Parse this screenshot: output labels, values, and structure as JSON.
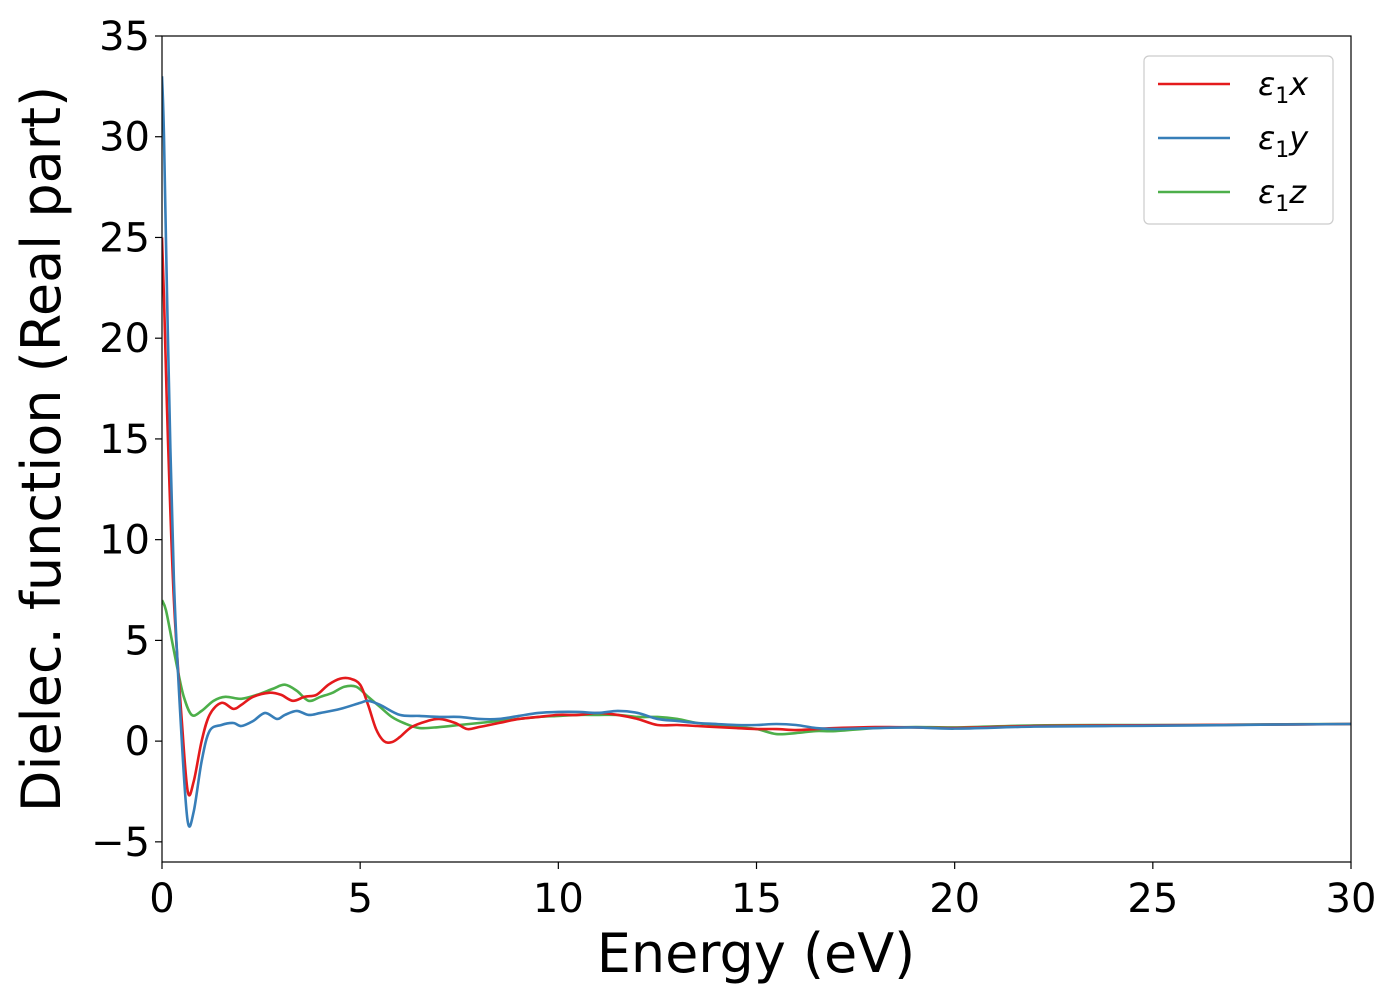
{
  "chart_data": {
    "type": "line",
    "xlabel": "Energy (eV)",
    "ylabel": "Dielec. function (Real part)",
    "xlim": [
      0,
      30
    ],
    "ylim": [
      -6,
      35
    ],
    "xticks": [
      0,
      5,
      10,
      15,
      20,
      25,
      30
    ],
    "yticks": [
      -5,
      0,
      5,
      10,
      15,
      20,
      25,
      30,
      35
    ],
    "xtick_labels": [
      "0",
      "5",
      "10",
      "15",
      "20",
      "25",
      "30"
    ],
    "ytick_labels": [
      "−5",
      "0",
      "5",
      "10",
      "15",
      "20",
      "25",
      "30",
      "35"
    ],
    "grid": false,
    "legend_position": "top-right",
    "series": [
      {
        "name": "ε1x",
        "legend_base": "ε",
        "legend_sub": "1",
        "legend_var": "x",
        "color": "#e41a1c",
        "x": [
          0,
          0.05,
          0.15,
          0.3,
          0.5,
          0.65,
          0.8,
          1.0,
          1.2,
          1.5,
          1.8,
          2.0,
          2.3,
          2.7,
          3.0,
          3.3,
          3.6,
          3.9,
          4.2,
          4.5,
          4.75,
          5.0,
          5.2,
          5.4,
          5.6,
          5.8,
          6.0,
          6.3,
          6.7,
          7.0,
          7.4,
          7.7,
          8.0,
          8.5,
          9.0,
          9.5,
          10.0,
          10.5,
          11.0,
          11.5,
          12.0,
          12.5,
          13.0,
          13.5,
          14.0,
          14.5,
          15.0,
          15.5,
          16.0,
          16.5,
          17.0,
          18.0,
          19.0,
          20.0,
          22.0,
          24.0,
          26.0,
          28.0,
          30.0
        ],
        "y": [
          25,
          22,
          15,
          7,
          1.0,
          -2.5,
          -2.0,
          0,
          1.3,
          1.9,
          1.6,
          1.8,
          2.2,
          2.4,
          2.3,
          2.0,
          2.2,
          2.3,
          2.8,
          3.1,
          3.1,
          2.8,
          1.8,
          0.6,
          0.0,
          -0.05,
          0.2,
          0.7,
          1.0,
          1.1,
          0.9,
          0.6,
          0.7,
          0.9,
          1.1,
          1.2,
          1.3,
          1.3,
          1.4,
          1.3,
          1.1,
          0.8,
          0.8,
          0.75,
          0.7,
          0.65,
          0.6,
          0.6,
          0.55,
          0.6,
          0.65,
          0.7,
          0.68,
          0.65,
          0.75,
          0.78,
          0.8,
          0.82,
          0.85
        ]
      },
      {
        "name": "ε1y",
        "legend_base": "ε",
        "legend_sub": "1",
        "legend_var": "y",
        "color": "#377eb8",
        "x": [
          0,
          0.05,
          0.15,
          0.3,
          0.5,
          0.65,
          0.8,
          1.0,
          1.2,
          1.5,
          1.8,
          2.0,
          2.3,
          2.6,
          2.9,
          3.1,
          3.4,
          3.7,
          4.0,
          4.5,
          5.0,
          5.2,
          5.5,
          6.0,
          6.5,
          7.0,
          7.5,
          8.0,
          8.5,
          9.0,
          9.5,
          10.0,
          10.5,
          11.0,
          11.5,
          12.0,
          12.5,
          13.0,
          13.5,
          14.0,
          14.5,
          15.0,
          15.5,
          16.0,
          16.5,
          17.0,
          18.0,
          19.0,
          20.0,
          22.0,
          24.0,
          26.0,
          28.0,
          30.0
        ],
        "y": [
          33,
          30,
          20,
          8,
          0,
          -4.0,
          -3.5,
          -1.0,
          0.5,
          0.8,
          0.9,
          0.75,
          1.0,
          1.4,
          1.1,
          1.3,
          1.5,
          1.3,
          1.4,
          1.6,
          1.9,
          2.0,
          1.8,
          1.3,
          1.25,
          1.2,
          1.2,
          1.1,
          1.1,
          1.25,
          1.4,
          1.45,
          1.45,
          1.4,
          1.5,
          1.4,
          1.1,
          1.0,
          0.9,
          0.85,
          0.8,
          0.8,
          0.85,
          0.8,
          0.65,
          0.6,
          0.65,
          0.68,
          0.62,
          0.72,
          0.75,
          0.78,
          0.82,
          0.85
        ]
      },
      {
        "name": "ε1z",
        "legend_base": "ε",
        "legend_sub": "1",
        "legend_var": "z",
        "color": "#4daf4a",
        "x": [
          0,
          0.1,
          0.25,
          0.4,
          0.55,
          0.75,
          1.0,
          1.3,
          1.6,
          2.0,
          2.4,
          2.8,
          3.1,
          3.4,
          3.7,
          4.0,
          4.3,
          4.6,
          4.9,
          5.2,
          5.5,
          5.8,
          6.1,
          6.5,
          7.0,
          7.5,
          8.0,
          8.5,
          9.0,
          9.5,
          10.0,
          10.5,
          11.0,
          11.5,
          12.0,
          12.5,
          13.0,
          13.5,
          14.0,
          14.5,
          15.0,
          15.5,
          16.0,
          16.5,
          17.0,
          18.0,
          19.0,
          20.0,
          22.0,
          24.0,
          26.0,
          28.0,
          30.0
        ],
        "y": [
          7.0,
          6.5,
          5.0,
          3.5,
          2.2,
          1.3,
          1.5,
          2.0,
          2.2,
          2.1,
          2.3,
          2.6,
          2.8,
          2.5,
          2.0,
          2.2,
          2.4,
          2.7,
          2.7,
          2.2,
          1.7,
          1.2,
          0.9,
          0.65,
          0.7,
          0.8,
          0.9,
          1.0,
          1.1,
          1.2,
          1.25,
          1.3,
          1.3,
          1.3,
          1.2,
          1.2,
          1.1,
          0.9,
          0.8,
          0.7,
          0.6,
          0.35,
          0.4,
          0.5,
          0.5,
          0.65,
          0.7,
          0.68,
          0.78,
          0.8,
          0.8,
          0.83,
          0.85
        ]
      }
    ]
  }
}
